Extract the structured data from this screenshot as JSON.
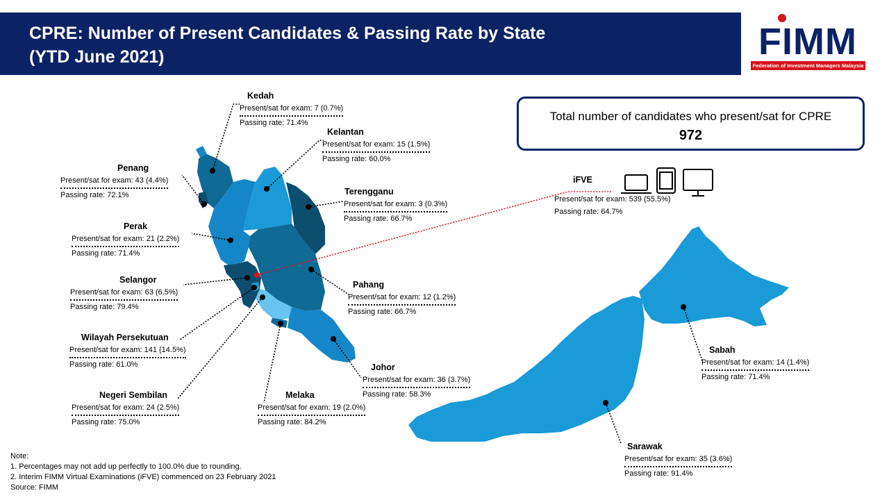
{
  "title": {
    "line1": "CPRE: Number of Present Candidates & Passing Rate by State",
    "line2": "(YTD June 2021)"
  },
  "logo": {
    "text": "FIMM",
    "tagline": "Federation of Investment Managers Malaysia"
  },
  "total": {
    "label": "Total number of candidates who present/sat for CPRE",
    "value": "972"
  },
  "ifve": {
    "name": "iFVE",
    "present": "Present/sat for exam: 539 (55.5%)",
    "passing": "Passing rate: 64.7%",
    "icons": [
      "laptop-icon",
      "tablet-icon",
      "monitor-icon"
    ]
  },
  "states": {
    "kedah": {
      "name": "Kedah",
      "present": "Present/sat for exam: 7 (0.7%)",
      "passing": "Passing rate: 71.4%"
    },
    "kelantan": {
      "name": "Kelantan",
      "present": "Present/sat for exam: 15 (1.5%)",
      "passing": "Passing rate: 60.0%"
    },
    "penang": {
      "name": "Penang",
      "present": "Present/sat for exam: 43 (4.4%)",
      "passing": "Passing rate: 72.1%"
    },
    "terengganu": {
      "name": "Terengganu",
      "present": "Present/sat for exam: 3 (0.3%)",
      "passing": "Passing rate: 66.7%"
    },
    "perak": {
      "name": "Perak",
      "present": "Present/sat for exam: 21 (2.2%)",
      "passing": "Passing rate: 71.4%"
    },
    "selangor": {
      "name": "Selangor",
      "present": "Present/sat for exam: 63 (6.5%)",
      "passing": "Passing rate: 79.4%"
    },
    "pahang": {
      "name": "Pahang",
      "present": "Present/sat for exam: 12 (1.2%)",
      "passing": "Passing rate: 66.7%"
    },
    "wp": {
      "name": "Wilayah Persekutuan",
      "present": "Present/sat for exam: 141 (14.5%)",
      "passing": "Passing rate: 61.0%"
    },
    "johor": {
      "name": "Johor",
      "present": "Present/sat for exam: 36 (3.7%)",
      "passing": "Passing rate: 58.3%"
    },
    "ns": {
      "name": "Negeri Sembilan",
      "present": "Present/sat for exam: 24 (2.5%)",
      "passing": "Passing rate: 75.0%"
    },
    "melaka": {
      "name": "Melaka",
      "present": "Present/sat for exam: 19 (2.0%)",
      "passing": "Passing rate: 84.2%"
    },
    "sabah": {
      "name": "Sabah",
      "present": "Present/sat for exam: 14 (1.4%)",
      "passing": "Passing rate: 71.4%"
    },
    "sarawak": {
      "name": "Sarawak",
      "present": "Present/sat for exam: 35 (3.6%)",
      "passing": "Passing rate: 91.4%"
    }
  },
  "notes": {
    "heading": "Note:",
    "n1": "1.   Percentages may not add up perfectly to 100.0% due to rounding.",
    "n2": "2.   Interim FIMM Virtual Examinations (iFVE) commenced on 23 February 2021",
    "source": "Source: FIMM"
  },
  "colors": {
    "navy": "#0b2265",
    "dark": "#0d4d6e",
    "mid": "#0f6a96",
    "medium": "#1586c7",
    "light": "#1a9ad6",
    "pale": "#67c3f0",
    "red": "#d6141c"
  }
}
